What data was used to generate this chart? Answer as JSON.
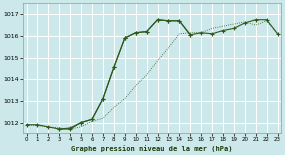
{
  "title": "Graphe pression niveau de la mer (hPa)",
  "bg_color": "#cce8ea",
  "grid_color": "#ffffff",
  "line_color": "#2d5a1b",
  "x_min": 0,
  "x_max": 23,
  "y_min": 1011.5,
  "y_max": 1017.5,
  "y_ticks": [
    1012,
    1013,
    1014,
    1015,
    1016,
    1017
  ],
  "x_ticks": [
    0,
    1,
    2,
    3,
    4,
    5,
    6,
    7,
    8,
    9,
    10,
    11,
    12,
    13,
    14,
    15,
    16,
    17,
    18,
    19,
    20,
    21,
    22,
    23
  ],
  "line_main_x": [
    0,
    1,
    2,
    3,
    4,
    5,
    6,
    7,
    8,
    9,
    10,
    11,
    12,
    13,
    14,
    15,
    16,
    17,
    18,
    19,
    20,
    21,
    22,
    23
  ],
  "line_main_y": [
    1011.9,
    1011.9,
    1011.8,
    1011.7,
    1011.75,
    1012.0,
    1012.15,
    1013.1,
    1014.55,
    1015.9,
    1016.15,
    1016.2,
    1016.75,
    1016.7,
    1016.7,
    1016.05,
    1016.15,
    1016.1,
    1016.25,
    1016.35,
    1016.6,
    1016.75,
    1016.75,
    1016.1
  ],
  "line_back_x": [
    0,
    1,
    2,
    3,
    4,
    5,
    6,
    7,
    8,
    9,
    10,
    11,
    12,
    13,
    14,
    15,
    16,
    17,
    18,
    19,
    20,
    21,
    22,
    23
  ],
  "line_back_y": [
    1011.9,
    1011.85,
    1011.8,
    1011.75,
    1011.7,
    1011.8,
    1012.05,
    1012.2,
    1012.7,
    1013.1,
    1013.7,
    1014.2,
    1014.85,
    1015.45,
    1016.1,
    1016.15,
    1016.15,
    1016.35,
    1016.45,
    1016.55,
    1016.65,
    1016.5,
    1016.7,
    1016.1
  ],
  "line_sec_x": [
    3,
    4,
    5,
    6,
    7,
    8,
    9,
    10,
    11,
    12,
    13,
    14,
    15
  ],
  "line_sec_y": [
    1011.7,
    1011.7,
    1012.0,
    1012.15,
    1013.1,
    1014.55,
    1015.9,
    1016.15,
    1016.2,
    1016.75,
    1016.7,
    1016.7,
    1016.05
  ]
}
